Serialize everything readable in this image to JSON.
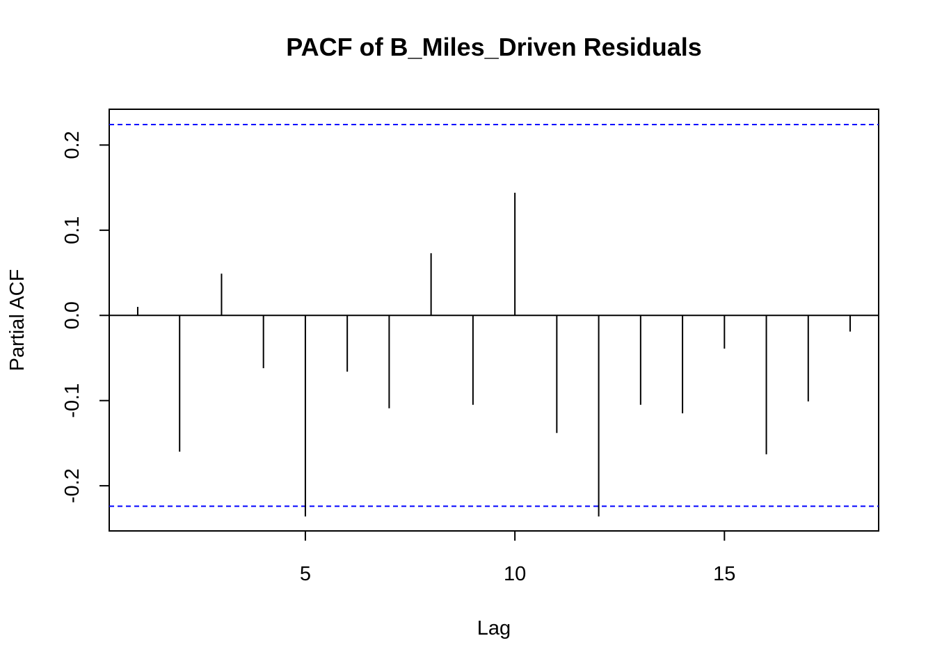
{
  "chart_data": {
    "type": "bar",
    "subtype": "pacf-stem",
    "title": "PACF of B_Miles_Driven Residuals",
    "xlabel": "Lag",
    "ylabel": "Partial ACF",
    "x": [
      1,
      2,
      3,
      4,
      5,
      6,
      7,
      8,
      9,
      10,
      11,
      12,
      13,
      14,
      15,
      16,
      17,
      18
    ],
    "values": [
      0.01,
      -0.16,
      0.049,
      -0.062,
      -0.236,
      -0.066,
      -0.109,
      0.073,
      -0.105,
      0.144,
      -0.138,
      -0.236,
      -0.105,
      -0.115,
      -0.039,
      -0.163,
      -0.101,
      -0.019
    ],
    "confidence_bound": 0.224,
    "xlim": [
      0.32,
      18.68
    ],
    "ylim": [
      -0.253,
      0.242
    ],
    "x_ticks": [
      5,
      10,
      15
    ],
    "x_tick_labels": [
      "5",
      "10",
      "15"
    ],
    "y_ticks": [
      -0.2,
      -0.1,
      0.0,
      0.1,
      0.2
    ],
    "y_tick_labels": [
      "-0.2",
      "-0.1",
      "0.0",
      "0.1",
      "0.2"
    ],
    "grid": false,
    "zero_line": true,
    "colors": {
      "stems": "#000000",
      "confidence_lines": "#0000ff",
      "axis": "#000000"
    }
  }
}
